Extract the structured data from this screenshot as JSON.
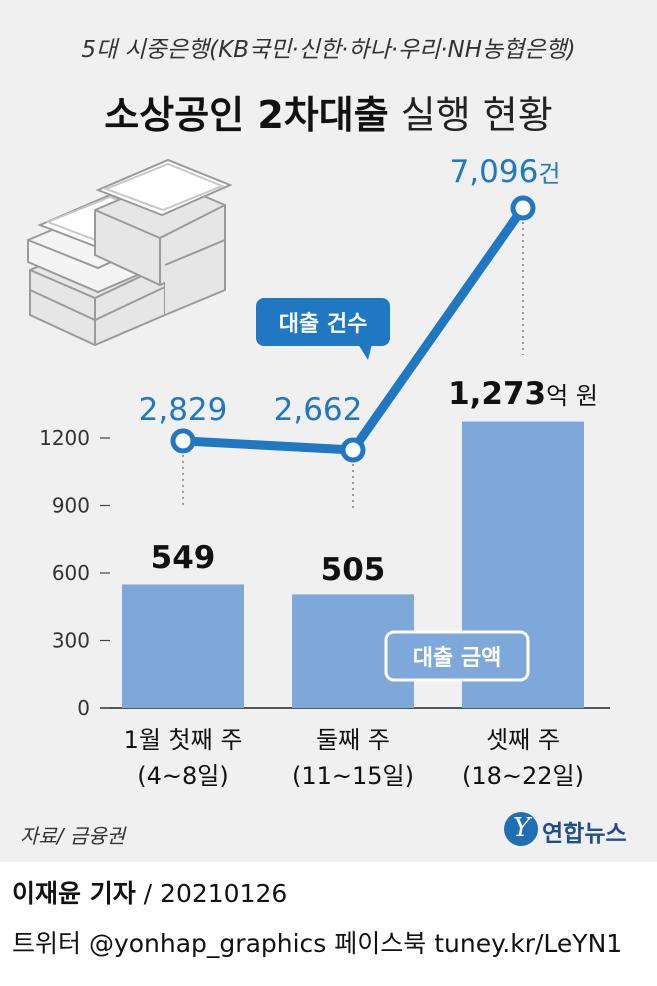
{
  "header": {
    "kicker": "5대 시중은행(KB국민·신한·하나·우리·NH농협은행)",
    "title_bold": "소상공인 2차대출",
    "title_light": "실행 현황"
  },
  "chart_data": {
    "type": "bar",
    "categories": [
      "1월 첫째 주",
      "둘째 주",
      "셋째 주"
    ],
    "category_sublabels": [
      "(4~8일)",
      "(11~15일)",
      "(18~22일)"
    ],
    "series": [
      {
        "name": "대출 금액",
        "type": "bar",
        "values": [
          549,
          505,
          1273
        ],
        "color": "#7fa8da",
        "value_labels": [
          "549",
          "505",
          "1,273"
        ],
        "unit_label": "억 원"
      },
      {
        "name": "대출 건수",
        "type": "line",
        "values": [
          2829,
          2662,
          7096
        ],
        "color": "#1f78c1",
        "value_labels": [
          "2,829",
          "2,662",
          "7,096"
        ],
        "unit_label": "건"
      }
    ],
    "yticks": [
      0,
      300,
      600,
      900,
      1200
    ],
    "ylim": [
      0,
      1350
    ],
    "line_ylim": [
      2000,
      7600
    ],
    "grid": false
  },
  "footer": {
    "source": "자료/ 금융권",
    "logo_mark": "Y",
    "logo_text": "연합뉴스",
    "byline_name": "이재윤 기자",
    "byline_date": " / 20210126",
    "social": "트위터 @yonhap_graphics  페이스북 tuney.kr/LeYN1"
  }
}
